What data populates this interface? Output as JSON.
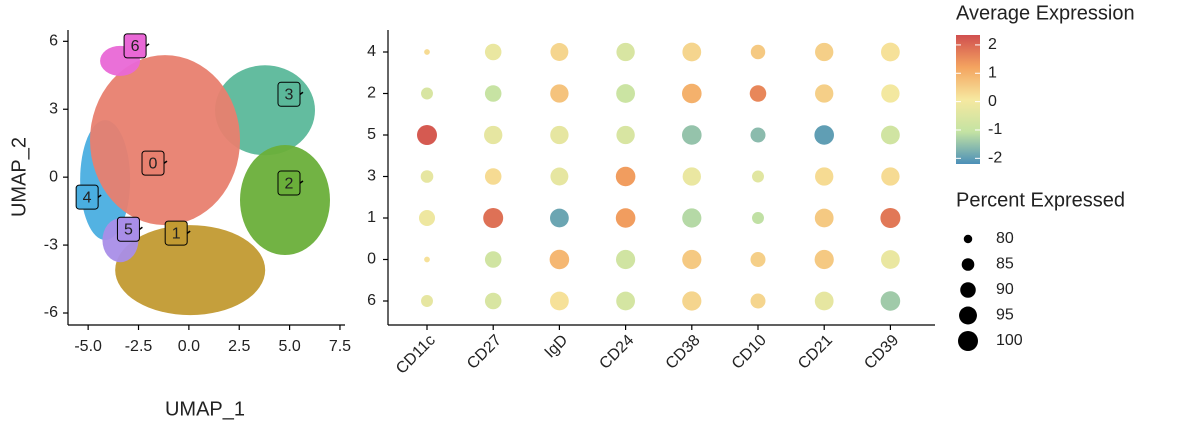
{
  "chart_data": [
    {
      "type": "scatter",
      "xlabel": "UMAP_1",
      "ylabel": "UMAP_2",
      "xlim": [
        -6,
        7.75
      ],
      "ylim": [
        -6.53,
        6.5
      ],
      "xticks": [
        {
          "value": -5,
          "label": "-5.0"
        },
        {
          "value": -2.5,
          "label": "-2.5"
        },
        {
          "value": 0,
          "label": "0.0"
        },
        2.5,
        {
          "value": 5,
          "label": "5.0"
        },
        {
          "value": 7.5,
          "label": "7.5"
        }
      ],
      "yticks": [
        -6,
        -3,
        0,
        3,
        6
      ],
      "clusters": [
        {
          "name": "0",
          "color": "#e8806f",
          "x": -1.78,
          "y": 0.62
        },
        {
          "name": "1",
          "color": "#c29a32",
          "x": -0.63,
          "y": -2.47
        },
        {
          "name": "2",
          "color": "#6aaf3a",
          "x": 4.97,
          "y": -0.26
        },
        {
          "name": "3",
          "color": "#5bb89a",
          "x": 4.97,
          "y": 3.66
        },
        {
          "name": "4",
          "color": "#4aaee0",
          "x": -5.05,
          "y": -0.88
        },
        {
          "name": "5",
          "color": "#a98ee8",
          "x": -3.0,
          "y": -2.3
        },
        {
          "name": "6",
          "color": "#e968d6",
          "x": -2.67,
          "y": 5.8
        }
      ]
    },
    {
      "type": "dot",
      "categories": [
        "CD11c",
        "CD27",
        "IgD",
        "CD24",
        "CD38",
        "CD10",
        "CD21",
        "CD39"
      ],
      "rows": [
        "4",
        "2",
        "5",
        "3",
        "1",
        "0",
        "6"
      ],
      "avg_expression": [
        [
          0.3,
          -0.2,
          0.4,
          -0.6,
          0.4,
          0.6,
          0.5,
          0.2
        ],
        [
          -0.6,
          -1.0,
          0.7,
          -0.9,
          1.0,
          1.6,
          0.5,
          0.0
        ],
        [
          2.2,
          -0.3,
          -0.3,
          -0.6,
          -1.5,
          -1.6,
          -2.0,
          -0.8
        ],
        [
          -0.3,
          0.3,
          -0.3,
          1.3,
          -0.2,
          -0.4,
          0.3,
          0.3
        ],
        [
          -0.1,
          1.9,
          -1.9,
          1.3,
          -1.2,
          -1.1,
          0.6,
          1.8
        ],
        [
          0.2,
          -0.8,
          0.9,
          -0.8,
          0.6,
          0.5,
          0.6,
          -0.2
        ],
        [
          -0.3,
          -0.6,
          0.2,
          -0.7,
          0.4,
          0.4,
          -0.3,
          -1.4
        ]
      ],
      "pct_expressed": [
        [
          78,
          92,
          95,
          96,
          97,
          88,
          96,
          97
        ],
        [
          84,
          92,
          96,
          97,
          99,
          92,
          96,
          96
        ],
        [
          100,
          96,
          96,
          96,
          99,
          89,
          99,
          97
        ],
        [
          85,
          92,
          95,
          99,
          96,
          84,
          96,
          96
        ],
        [
          91,
          100,
          97,
          99,
          98,
          84,
          97,
          100
        ],
        [
          78,
          92,
          99,
          98,
          98,
          89,
          98,
          97
        ],
        [
          84,
          92,
          97,
          97,
          98,
          89,
          97,
          99
        ]
      ],
      "color_title": "Average Expression",
      "clim": [
        -2.2,
        2.35
      ],
      "cticks": [
        -2,
        -1,
        0,
        1,
        2
      ],
      "colormap": [
        "#4b8fb8",
        "#c4e3a3",
        "#f6e8a0",
        "#f4a460",
        "#d04f4f"
      ],
      "size_title": "Percent Expressed",
      "size_lim": [
        77,
        100
      ],
      "size_ticks": [
        80,
        85,
        90,
        95,
        100
      ]
    }
  ]
}
